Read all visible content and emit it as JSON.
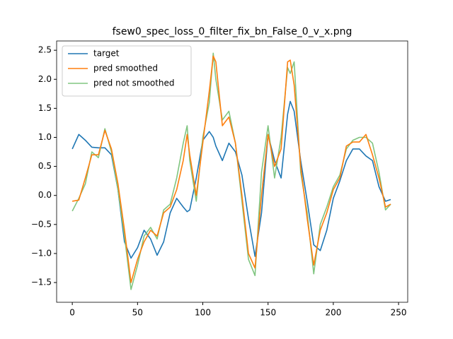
{
  "chart_data": {
    "type": "line",
    "title": "fsew0_spec_loss_0_filter_fix_bn_False_0_v_x.png",
    "x": [
      0,
      5,
      10,
      15,
      20,
      25,
      30,
      35,
      40,
      45,
      50,
      55,
      60,
      65,
      70,
      75,
      80,
      85,
      88,
      90,
      95,
      100,
      105,
      108,
      110,
      115,
      120,
      125,
      130,
      135,
      140,
      145,
      150,
      155,
      160,
      165,
      167,
      170,
      175,
      180,
      185,
      190,
      195,
      200,
      205,
      210,
      215,
      220,
      225,
      230,
      235,
      240,
      244
    ],
    "series": [
      {
        "name": "target",
        "color": "#1f77b4",
        "values": [
          0.8,
          1.05,
          0.95,
          0.83,
          0.82,
          0.82,
          0.7,
          0.1,
          -0.8,
          -1.08,
          -0.9,
          -0.6,
          -0.75,
          -1.03,
          -0.8,
          -0.3,
          -0.05,
          -0.2,
          -0.28,
          -0.25,
          0.3,
          0.95,
          1.1,
          1.0,
          0.85,
          0.6,
          0.9,
          0.75,
          0.35,
          -0.4,
          -1.05,
          -0.3,
          1.05,
          0.6,
          0.3,
          1.4,
          1.62,
          1.45,
          0.6,
          -0.1,
          -0.85,
          -0.95,
          -0.6,
          -0.05,
          0.25,
          0.6,
          0.8,
          0.8,
          0.68,
          0.6,
          0.15,
          -0.1,
          -0.07
        ]
      },
      {
        "name": "pred smoothed",
        "color": "#ff7f0e",
        "values": [
          -0.1,
          -0.08,
          0.3,
          0.7,
          0.7,
          1.12,
          0.8,
          0.2,
          -0.6,
          -1.5,
          -1.1,
          -0.8,
          -0.6,
          -0.7,
          -0.3,
          -0.2,
          0.1,
          0.6,
          1.05,
          0.7,
          0.0,
          0.9,
          1.8,
          2.4,
          2.3,
          1.2,
          1.35,
          0.9,
          0.0,
          -1.0,
          -1.25,
          0.0,
          1.05,
          0.5,
          0.8,
          2.3,
          2.33,
          1.9,
          0.5,
          -0.4,
          -1.2,
          -0.6,
          -0.3,
          0.1,
          0.3,
          0.85,
          0.92,
          0.92,
          1.05,
          0.7,
          0.3,
          -0.2,
          -0.15
        ]
      },
      {
        "name": "pred not smoothed",
        "color": "#80c580",
        "values": [
          -0.27,
          -0.05,
          0.2,
          0.75,
          0.65,
          1.15,
          0.75,
          0.1,
          -0.7,
          -1.62,
          -1.2,
          -0.7,
          -0.55,
          -0.75,
          -0.25,
          -0.15,
          0.3,
          0.9,
          1.2,
          0.6,
          -0.1,
          1.0,
          1.6,
          2.45,
          2.0,
          1.3,
          1.45,
          0.9,
          -0.1,
          -1.1,
          -1.38,
          0.4,
          1.2,
          0.3,
          1.0,
          2.2,
          2.1,
          2.3,
          0.4,
          -0.3,
          -1.35,
          -0.5,
          -0.2,
          0.15,
          0.35,
          0.8,
          0.95,
          1.0,
          1.0,
          0.9,
          0.4,
          -0.25,
          -0.15
        ]
      }
    ],
    "xlim": [
      -12,
      257
    ],
    "xticks": [
      0,
      50,
      100,
      150,
      200,
      250
    ],
    "ylim": [
      -1.84,
      2.66
    ],
    "yticks": [
      {
        "value": -1.5,
        "label": "−1.5"
      },
      {
        "value": -1.0,
        "label": "−1.0"
      },
      {
        "value": -0.5,
        "label": "−0.5"
      },
      {
        "value": 0,
        "label": "0.0"
      },
      {
        "value": 0.5,
        "label": "0.5"
      },
      {
        "value": 1.0,
        "label": "1.0"
      },
      {
        "value": 1.5,
        "label": "1.5"
      },
      {
        "value": 2.0,
        "label": "2.0"
      },
      {
        "value": 2.5,
        "label": "2.5"
      }
    ],
    "legend": "upper left",
    "grid": false
  }
}
